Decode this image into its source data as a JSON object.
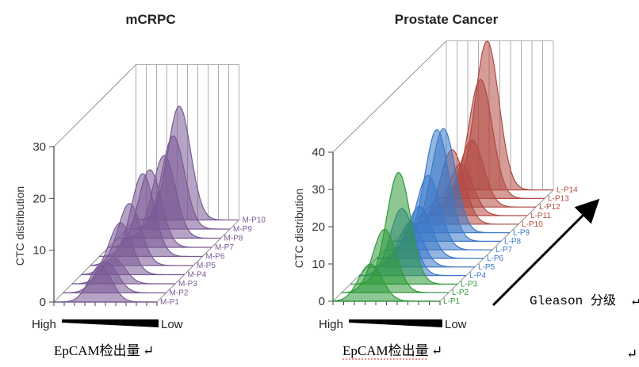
{
  "captions": {
    "left_caption": "EpCAM检出量",
    "right_caption": "EpCAM检出量",
    "gleason_label": "Gleason 分级",
    "edit_mark": "↵"
  },
  "chart_data": [
    {
      "type": "area",
      "title": "mCRPC",
      "ylabel": "CTC distribution",
      "ylim": [
        0,
        30
      ],
      "yticks": [
        "0",
        "10",
        "20",
        "30"
      ],
      "x_axis_low_label": "High",
      "x_axis_high_label": "Low",
      "color": "#7a5a96",
      "series": [
        {
          "name": "M-P1",
          "peak": 7,
          "center": 0.45
        },
        {
          "name": "M-P2",
          "peak": 6,
          "center": 0.42
        },
        {
          "name": "M-P3",
          "peak": 5,
          "center": 0.4
        },
        {
          "name": "M-P4",
          "peak": 10,
          "center": 0.38
        },
        {
          "name": "M-P5",
          "peak": 12,
          "center": 0.38
        },
        {
          "name": "M-P6",
          "peak": 16,
          "center": 0.42
        },
        {
          "name": "M-P7",
          "peak": 15,
          "center": 0.4
        },
        {
          "name": "M-P8",
          "peak": 16,
          "center": 0.45
        },
        {
          "name": "M-P9",
          "peak": 18,
          "center": 0.45
        },
        {
          "name": "M-P10",
          "peak": 22,
          "center": 0.42
        }
      ]
    },
    {
      "type": "area",
      "title": "Prostate Cancer",
      "ylabel": "CTC distribution",
      "ylim": [
        0,
        40
      ],
      "yticks": [
        "0",
        "10",
        "20",
        "30",
        "40"
      ],
      "x_axis_low_label": "High",
      "x_axis_high_label": "Low",
      "series": [
        {
          "name": "L-P1",
          "peak": 10,
          "center": 0.35,
          "color": "#2f9a3a"
        },
        {
          "name": "L-P2",
          "peak": 17,
          "center": 0.4,
          "color": "#2f9a3a"
        },
        {
          "name": "L-P3",
          "peak": 30,
          "center": 0.45,
          "color": "#2f9a3a"
        },
        {
          "name": "L-P4",
          "peak": 18,
          "center": 0.4,
          "color": "#3b78c8"
        },
        {
          "name": "L-P5",
          "peak": 12,
          "center": 0.4,
          "color": "#3b78c8"
        },
        {
          "name": "L-P6",
          "peak": 14,
          "center": 0.4,
          "color": "#3b78c8"
        },
        {
          "name": "L-P7",
          "peak": 20,
          "center": 0.4,
          "color": "#3b78c8"
        },
        {
          "name": "L-P8",
          "peak": 30,
          "center": 0.4,
          "color": "#3b78c8"
        },
        {
          "name": "L-P9",
          "peak": 28,
          "center": 0.38,
          "color": "#3b78c8"
        },
        {
          "name": "L-P10",
          "peak": 20,
          "center": 0.38,
          "color": "#b24a44"
        },
        {
          "name": "L-P11",
          "peak": 14,
          "center": 0.38,
          "color": "#b24a44"
        },
        {
          "name": "L-P12",
          "peak": 18,
          "center": 0.4,
          "color": "#b24a44"
        },
        {
          "name": "L-P13",
          "peak": 32,
          "center": 0.4,
          "color": "#b24a44"
        },
        {
          "name": "L-P14",
          "peak": 40,
          "center": 0.38,
          "color": "#b24a44"
        }
      ]
    }
  ]
}
